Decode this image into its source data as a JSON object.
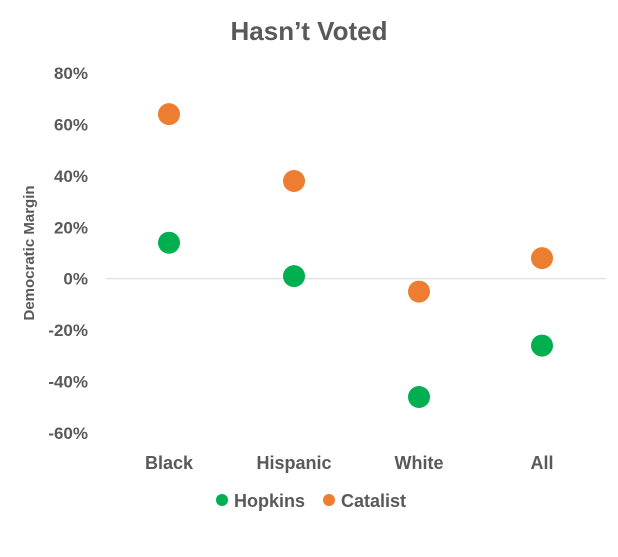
{
  "chart_data": {
    "type": "scatter",
    "title": "Hasn’t Voted",
    "xlabel": "",
    "ylabel": "Democratic Margin",
    "categories": [
      "Black",
      "Hispanic",
      "White",
      "All"
    ],
    "y_ticks": [
      "80%",
      "60%",
      "40%",
      "20%",
      "0%",
      "-20%",
      "-40%",
      "-60%"
    ],
    "y_tick_values": [
      80,
      60,
      40,
      20,
      0,
      -20,
      -40,
      -60
    ],
    "ylim": [
      -60,
      80
    ],
    "grid": false,
    "legend_position": "bottom",
    "series": [
      {
        "name": "Hopkins",
        "color": "#00b050",
        "values": [
          14,
          1,
          -46,
          -26
        ]
      },
      {
        "name": "Catalist",
        "color": "#ed7d31",
        "values": [
          64,
          38,
          -5,
          8
        ]
      }
    ]
  }
}
